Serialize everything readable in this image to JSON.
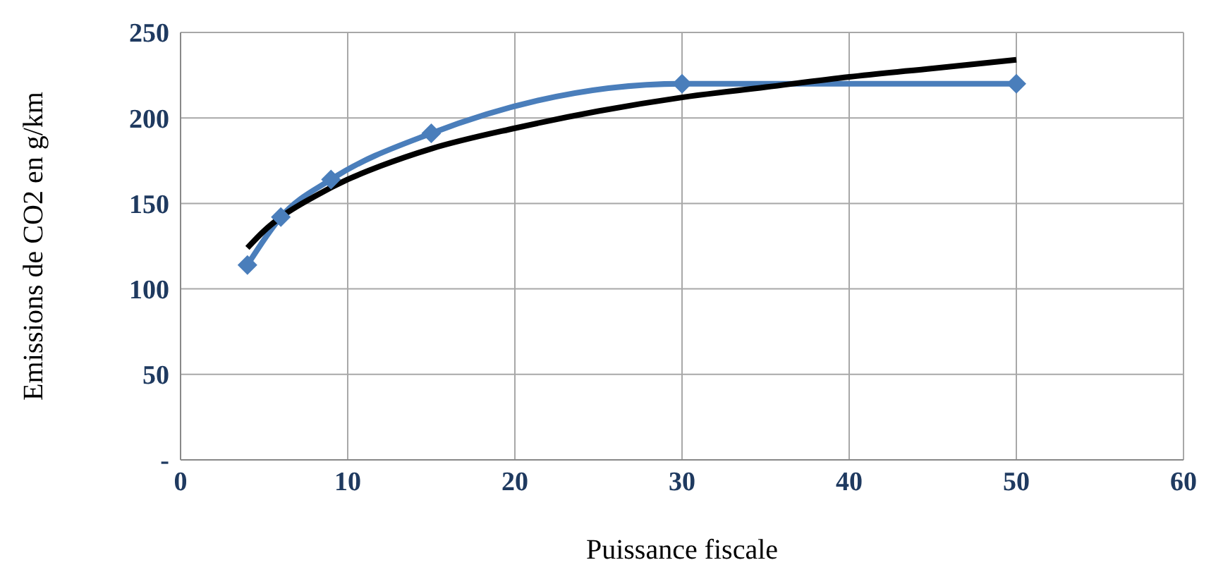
{
  "chart_data": {
    "type": "line",
    "xlabel": "Puissance fiscale",
    "ylabel": "Emissions de CO2 en g/km",
    "xlim": [
      0,
      60
    ],
    "xticks": [
      0,
      10,
      20,
      30,
      40,
      50,
      60
    ],
    "ylim": [
      0,
      250
    ],
    "yticks": [
      {
        "value": 0,
        "label": "-"
      },
      50,
      100,
      150,
      200,
      250
    ],
    "grid": true,
    "marker": "diamond",
    "line_style": "solid",
    "series": [
      {
        "color": "#4a7ebb",
        "x": [
          4,
          6,
          9,
          15,
          30,
          50
        ],
        "values": [
          114,
          142,
          164,
          191,
          220,
          220
        ]
      },
      {
        "color": "#000000",
        "marker": "none",
        "x": [
          4,
          5,
          6,
          8,
          10,
          12,
          15,
          20,
          25,
          30,
          35,
          40,
          45,
          50
        ],
        "values": [
          124,
          134,
          142,
          154,
          164,
          172,
          182,
          194,
          204,
          212,
          218,
          224,
          229,
          234
        ]
      }
    ]
  }
}
